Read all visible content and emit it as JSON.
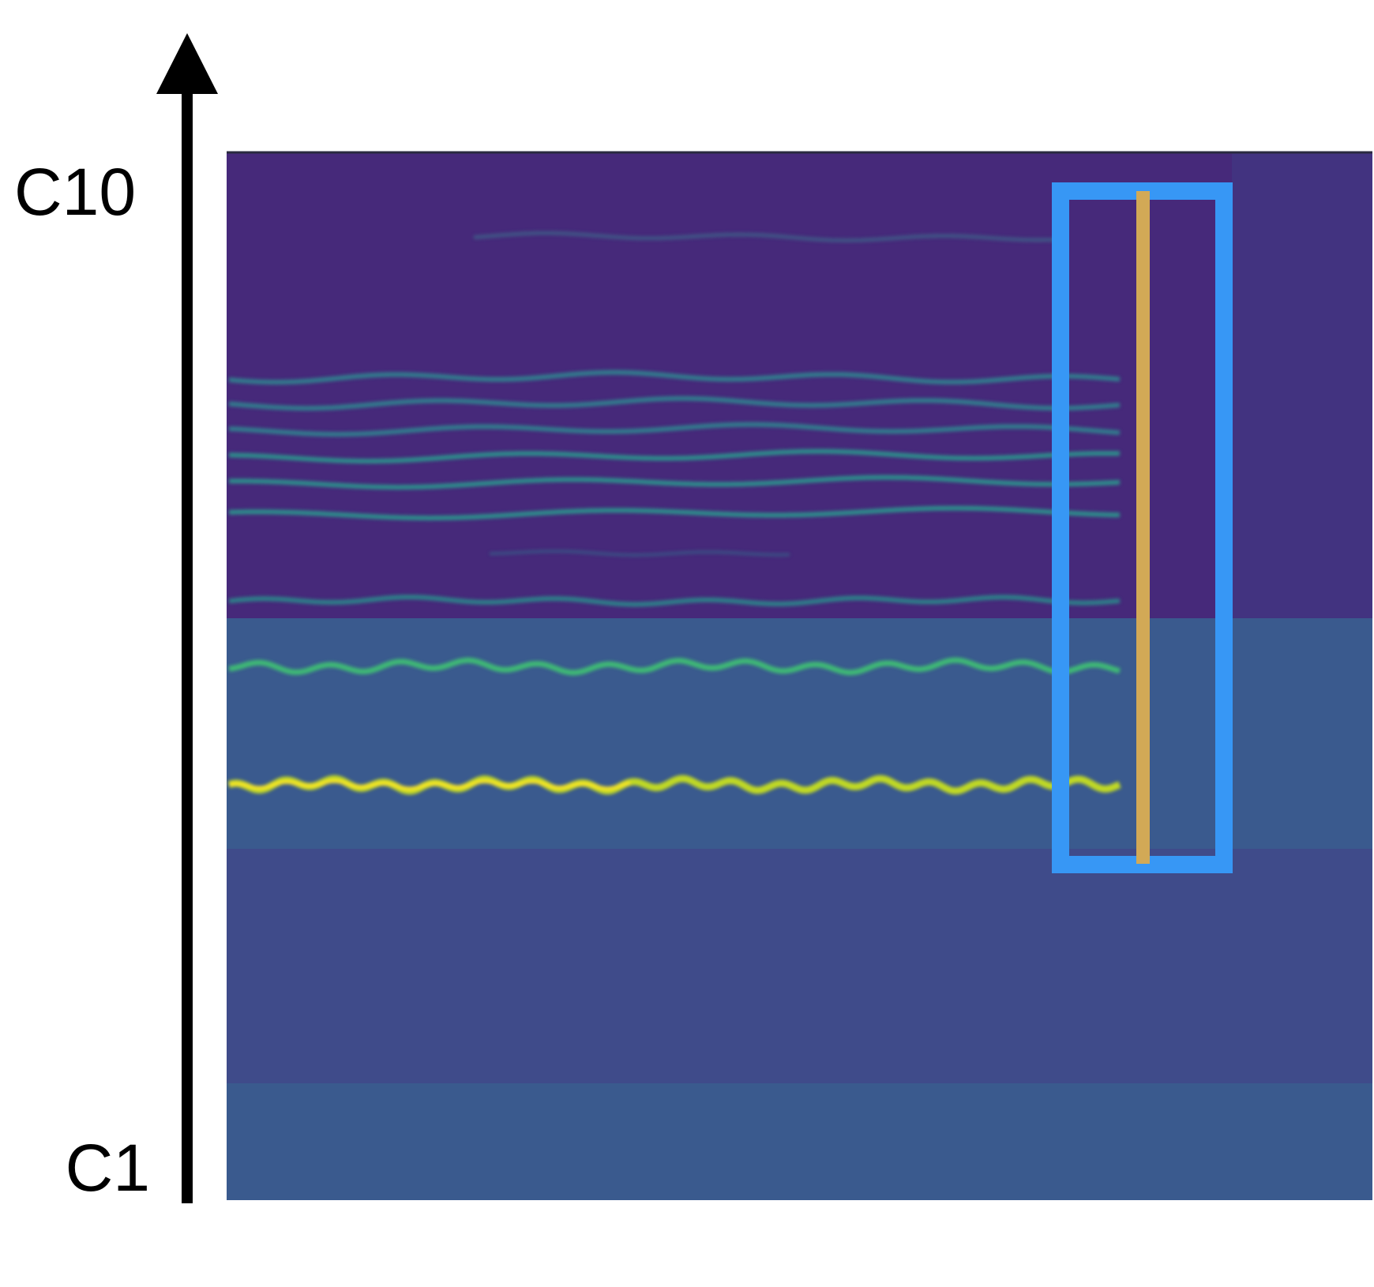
{
  "labels": {
    "top": "C10",
    "bottom": "C1"
  }
}
